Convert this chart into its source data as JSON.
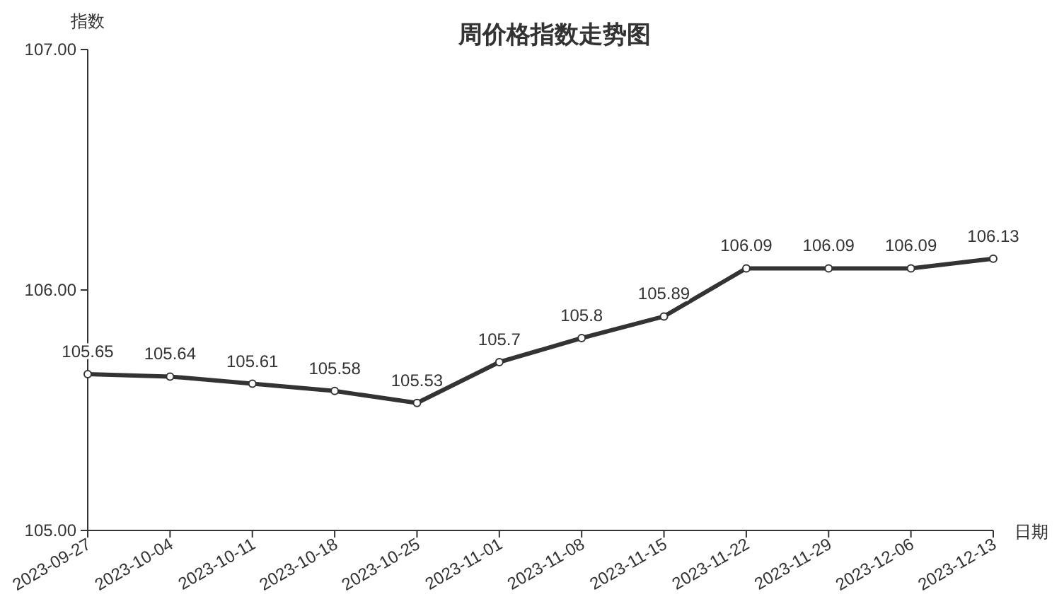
{
  "chart_data": {
    "type": "line",
    "title": "周价格指数走势图",
    "ylabel": "指数",
    "xlabel": "日期",
    "categories": [
      "2023-09-27",
      "2023-10-04",
      "2023-10-11",
      "2023-10-18",
      "2023-10-25",
      "2023-11-01",
      "2023-11-08",
      "2023-11-15",
      "2023-11-22",
      "2023-11-29",
      "2023-12-06",
      "2023-12-13"
    ],
    "series": [
      {
        "color": "#333333",
        "values": [
          105.65,
          105.64,
          105.61,
          105.58,
          105.53,
          105.7,
          105.8,
          105.89,
          106.09,
          106.09,
          106.09,
          106.13
        ]
      }
    ],
    "ylim": [
      105,
      107
    ],
    "yticks": [
      {
        "value": 105,
        "label": "105.00"
      },
      {
        "value": 106,
        "label": "106.00"
      },
      {
        "value": 107,
        "label": "107.00"
      }
    ],
    "data_labels": true,
    "marker": "circle",
    "line_style": "solid",
    "grid": false
  }
}
